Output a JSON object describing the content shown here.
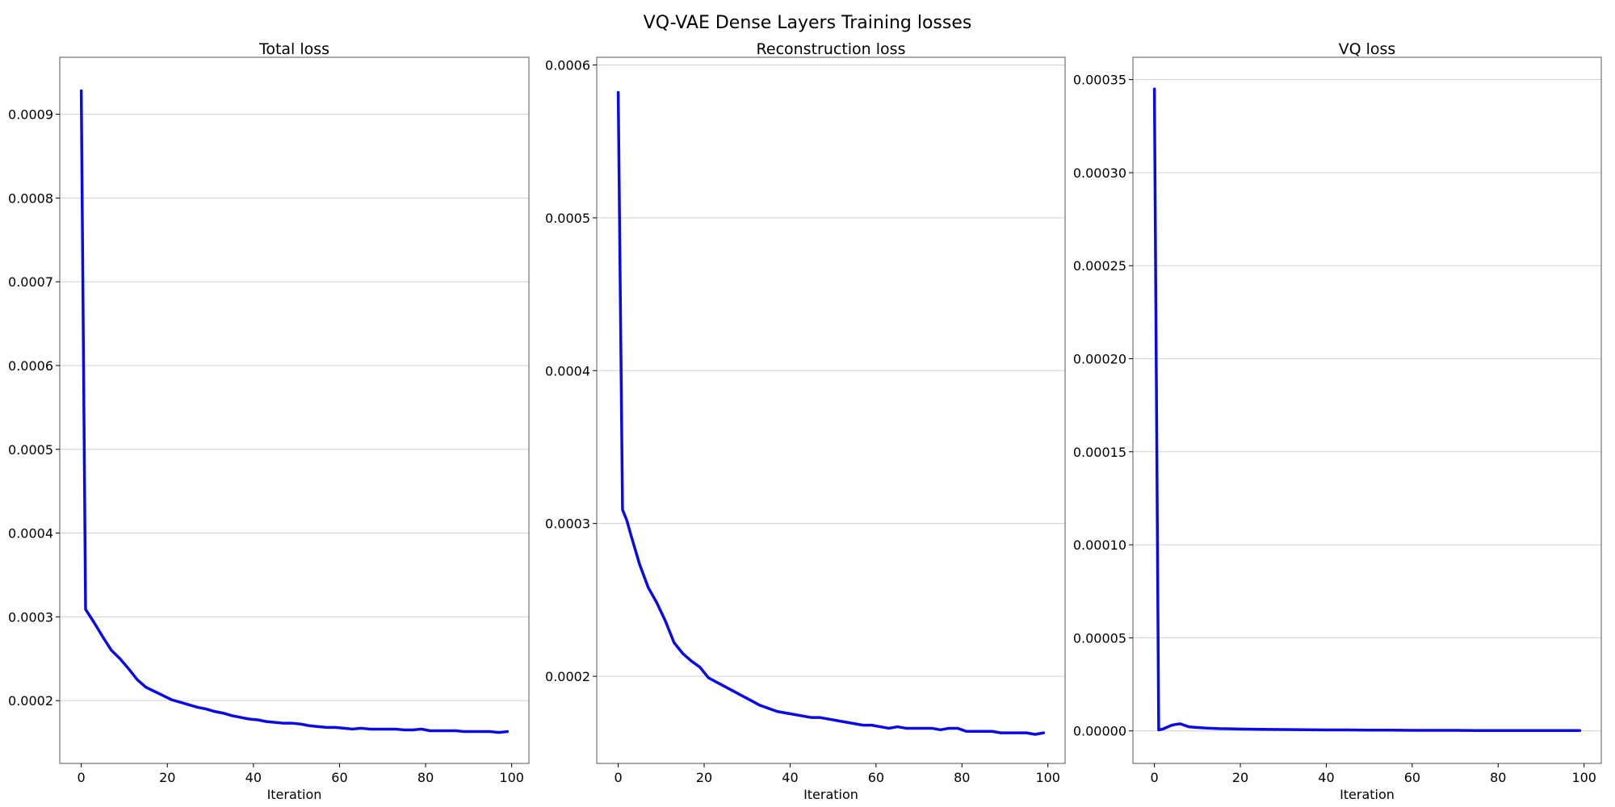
{
  "figure": {
    "suptitle": "VQ-VAE Dense Layers Training losses"
  },
  "chart_data": [
    {
      "type": "line",
      "title": "Total loss",
      "xlabel": "Iteration",
      "ylabel": "",
      "xlim": [
        -5,
        104
      ],
      "ylim": [
        0.000125,
        0.000968
      ],
      "xticks": [
        0,
        20,
        40,
        60,
        80,
        100
      ],
      "xtick_labels": [
        "0",
        "20",
        "40",
        "60",
        "80",
        "100"
      ],
      "yticks": [
        0.0002,
        0.0003,
        0.0004,
        0.0005,
        0.0006,
        0.0007,
        0.0008,
        0.0009
      ],
      "ytick_labels": [
        "0.0002",
        "0.0003",
        "0.0004",
        "0.0005",
        "0.0006",
        "0.0007",
        "0.0008",
        "0.0009"
      ],
      "grid": "y",
      "color": "#0a0ae6",
      "series": [
        {
          "x": [
            0,
            1,
            3,
            5,
            7,
            9,
            11,
            13,
            15,
            17,
            19,
            21,
            23,
            25,
            27,
            29,
            31,
            33,
            35,
            37,
            39,
            41,
            43,
            45,
            47,
            49,
            51,
            53,
            55,
            57,
            59,
            61,
            63,
            65,
            67,
            69,
            71,
            73,
            75,
            77,
            79,
            81,
            83,
            85,
            87,
            89,
            91,
            93,
            95,
            97,
            99
          ],
          "y": [
            0.000928,
            0.000309,
            0.000293,
            0.000276,
            0.00026,
            0.00025,
            0.000238,
            0.000225,
            0.000216,
            0.000211,
            0.000206,
            0.000201,
            0.000198,
            0.000195,
            0.000192,
            0.00019,
            0.000187,
            0.000185,
            0.000182,
            0.00018,
            0.000178,
            0.000177,
            0.000175,
            0.000174,
            0.000173,
            0.000173,
            0.000172,
            0.00017,
            0.000169,
            0.000168,
            0.000168,
            0.000167,
            0.000166,
            0.000167,
            0.000166,
            0.000166,
            0.000166,
            0.000166,
            0.000165,
            0.000165,
            0.000166,
            0.000164,
            0.000164,
            0.000164,
            0.000164,
            0.000163,
            0.000163,
            0.000163,
            0.000163,
            0.000162,
            0.000163
          ]
        }
      ]
    },
    {
      "type": "line",
      "title": "Reconstruction loss",
      "xlabel": "Iteration",
      "ylabel": "",
      "xlim": [
        -5,
        104
      ],
      "ylim": [
        0.000143,
        0.000605
      ],
      "xticks": [
        0,
        20,
        40,
        60,
        80,
        100
      ],
      "xtick_labels": [
        "0",
        "20",
        "40",
        "60",
        "80",
        "100"
      ],
      "yticks": [
        0.0002,
        0.0003,
        0.0004,
        0.0005,
        0.0006
      ],
      "ytick_labels": [
        "0.0002",
        "0.0003",
        "0.0004",
        "0.0005",
        "0.0006"
      ],
      "grid": "y",
      "color": "#0a0ae6",
      "series": [
        {
          "x": [
            0,
            1,
            2,
            3,
            5,
            7,
            9,
            11,
            13,
            15,
            17,
            19,
            21,
            23,
            25,
            27,
            29,
            31,
            33,
            35,
            37,
            39,
            41,
            43,
            45,
            47,
            49,
            51,
            53,
            55,
            57,
            59,
            61,
            63,
            65,
            67,
            69,
            71,
            73,
            75,
            77,
            79,
            81,
            83,
            85,
            87,
            89,
            91,
            93,
            95,
            97,
            99
          ],
          "y": [
            0.000582,
            0.000309,
            0.000302,
            0.000292,
            0.000273,
            0.000258,
            0.000248,
            0.000236,
            0.000222,
            0.000215,
            0.00021,
            0.000206,
            0.000199,
            0.000196,
            0.000193,
            0.00019,
            0.000187,
            0.000184,
            0.000181,
            0.000179,
            0.000177,
            0.000176,
            0.000175,
            0.000174,
            0.000173,
            0.000173,
            0.000172,
            0.000171,
            0.00017,
            0.000169,
            0.000168,
            0.000168,
            0.000167,
            0.000166,
            0.000167,
            0.000166,
            0.000166,
            0.000166,
            0.000166,
            0.000165,
            0.000166,
            0.000166,
            0.000164,
            0.000164,
            0.000164,
            0.000164,
            0.000163,
            0.000163,
            0.000163,
            0.000163,
            0.000162,
            0.000163
          ]
        }
      ]
    },
    {
      "type": "line",
      "title": "VQ loss",
      "xlabel": "Iteration",
      "ylabel": "",
      "xlim": [
        -5,
        104
      ],
      "ylim": [
        -1.75e-05,
        0.000362
      ],
      "xticks": [
        0,
        20,
        40,
        60,
        80,
        100
      ],
      "xtick_labels": [
        "0",
        "20",
        "40",
        "60",
        "80",
        "100"
      ],
      "yticks": [
        0.0,
        5e-05,
        0.0001,
        0.00015,
        0.0002,
        0.00025,
        0.0003,
        0.00035
      ],
      "ytick_labels": [
        "0.00000",
        "0.00005",
        "0.00010",
        "0.00015",
        "0.00020",
        "0.00025",
        "0.00030",
        "0.00035"
      ],
      "grid": "y",
      "color": "#0a0ae6",
      "series": [
        {
          "x": [
            0,
            1,
            2,
            3,
            4,
            5,
            6,
            7,
            8,
            10,
            12,
            15,
            20,
            25,
            30,
            35,
            40,
            45,
            50,
            55,
            60,
            65,
            70,
            75,
            80,
            85,
            90,
            95,
            99
          ],
          "y": [
            0.000345,
            5e-07,
            1e-06,
            2e-06,
            3e-06,
            3.5e-06,
            3.8e-06,
            3e-06,
            2.2e-06,
            1.8e-06,
            1.5e-06,
            1.2e-06,
            1e-06,
            8e-07,
            7e-07,
            6e-07,
            5e-07,
            5e-07,
            4e-07,
            4e-07,
            3e-07,
            3e-07,
            3e-07,
            2e-07,
            2e-07,
            2e-07,
            2e-07,
            2e-07,
            2e-07
          ]
        }
      ]
    }
  ]
}
